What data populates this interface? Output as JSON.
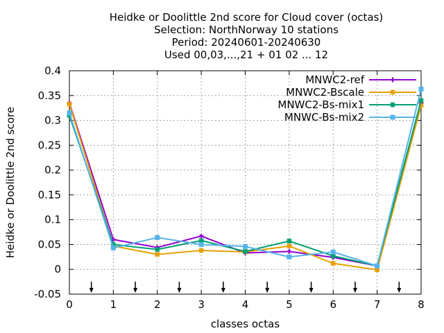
{
  "chart_data": {
    "type": "line",
    "title_lines": [
      "Heidke or Doolittle 2nd score  for Cloud cover (octas)",
      "Selection: NorthNorway     10 stations",
      "Period: 20240601-20240630",
      "Used 00,03,...,21 + 01 02 ... 12"
    ],
    "xlabel": "classes octas",
    "ylabel": "Heidke or Doolittle 2nd score",
    "xlim": [
      0,
      8
    ],
    "ylim": [
      -0.05,
      0.4
    ],
    "x": [
      0,
      1,
      2,
      3,
      4,
      5,
      6,
      7,
      8
    ],
    "xticks": [
      0,
      1,
      2,
      3,
      4,
      5,
      6,
      7,
      8
    ],
    "xtick_labels": [
      "0",
      "1",
      "2",
      "3",
      "4",
      "5",
      "6",
      "7",
      "8"
    ],
    "yticks": [
      -0.05,
      0,
      0.05,
      0.1,
      0.15,
      0.2,
      0.25,
      0.3,
      0.35,
      0.4
    ],
    "ytick_labels": [
      "-0.05",
      "0",
      "0.05",
      "0.1",
      "0.15",
      "0.2",
      "0.25",
      "0.3",
      "0.35",
      "0.4"
    ],
    "grid": true,
    "legend_position": "top-right",
    "arrow_markers_x": [
      0.5,
      1.5,
      2.5,
      3.5,
      4.5,
      5.5,
      6.5,
      7.5
    ],
    "series": [
      {
        "name": "MNWC2-ref",
        "color": "#9400d3",
        "marker": "plus",
        "values": [
          0.335,
          0.06,
          0.044,
          0.067,
          0.033,
          0.036,
          0.024,
          0.007,
          0.335
        ]
      },
      {
        "name": "MNWC2-Bscale",
        "color": "#e69f00",
        "marker": "cross",
        "values": [
          0.333,
          0.047,
          0.03,
          0.038,
          0.035,
          0.047,
          0.012,
          -0.001,
          0.33
        ]
      },
      {
        "name": "MNWC2-Bs-mix1",
        "color": "#009e73",
        "marker": "star",
        "values": [
          0.31,
          0.05,
          0.04,
          0.058,
          0.036,
          0.057,
          0.027,
          0.007,
          0.34
        ]
      },
      {
        "name": "MNWC-Bs-mix2",
        "color": "#56b4e9",
        "marker": "box",
        "values": [
          0.315,
          0.043,
          0.064,
          0.05,
          0.046,
          0.025,
          0.035,
          0.007,
          0.363
        ]
      }
    ]
  }
}
